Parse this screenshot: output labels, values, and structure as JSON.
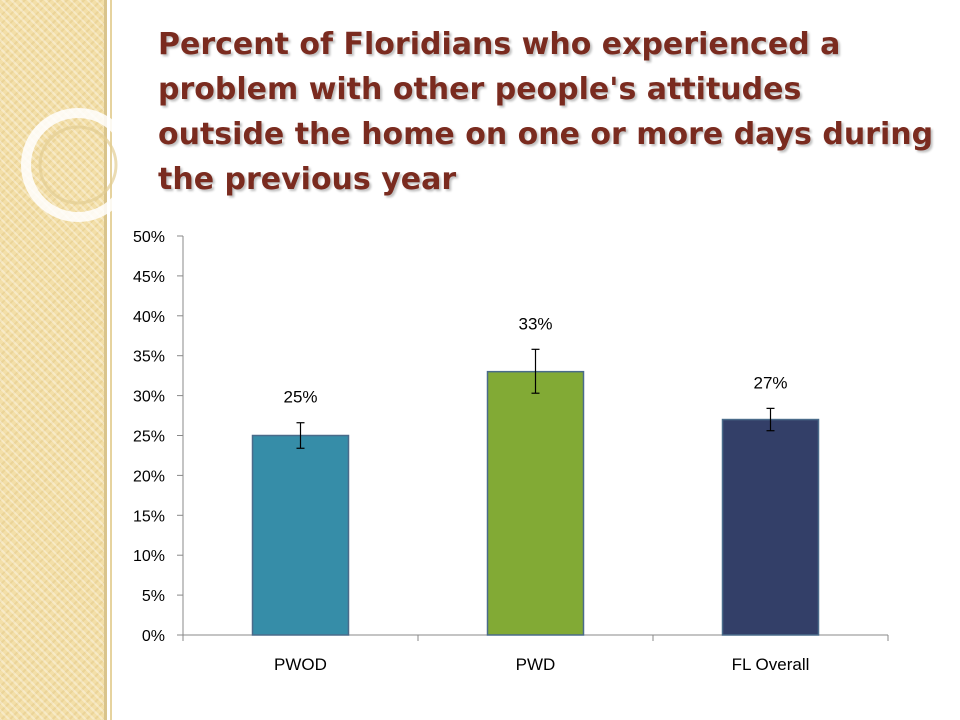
{
  "slide": {
    "title": "Percent of Floridians who experienced a problem with other people's attitudes outside the home on one or more days during the previous year"
  },
  "colors": {
    "band": "#f3dfa8",
    "title": "#7a2b1f"
  },
  "chart_data": {
    "type": "bar",
    "title": "",
    "xlabel": "",
    "ylabel": "",
    "categories": [
      "PWOD",
      "PWD",
      "FL Overall"
    ],
    "values": [
      25,
      33,
      27
    ],
    "data_labels": [
      "25%",
      "33%",
      "27%"
    ],
    "error_bars": [
      [
        23.4,
        26.6
      ],
      [
        30.3,
        35.8
      ],
      [
        25.6,
        28.4
      ]
    ],
    "bar_colors": [
      "#368da8",
      "#82aa35",
      "#333f68"
    ],
    "ylim": [
      0,
      50
    ],
    "yticks": [
      0,
      5,
      10,
      15,
      20,
      25,
      30,
      35,
      40,
      45,
      50
    ],
    "ytick_labels": [
      "0%",
      "5%",
      "10%",
      "15%",
      "20%",
      "25%",
      "30%",
      "35%",
      "40%",
      "45%",
      "50%"
    ],
    "grid": false,
    "legend": "none"
  }
}
